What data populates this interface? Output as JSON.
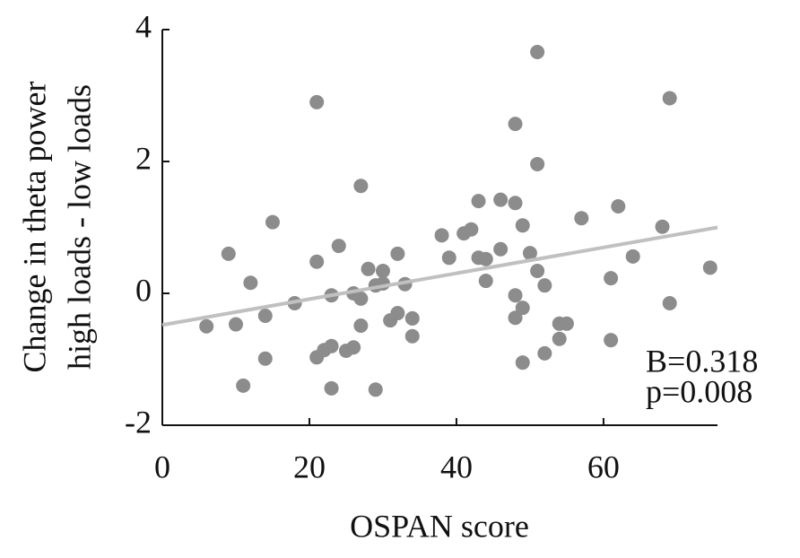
{
  "chart_data": {
    "type": "scatter",
    "x_label": "OSPAN score",
    "y_label": [
      "Change in theta power",
      "high loads - low loads"
    ],
    "annotations": [
      "B=0.318",
      "p=0.008"
    ],
    "color": "#8c8c8c",
    "x": [
      6,
      9,
      10,
      11,
      12,
      14,
      14,
      15,
      18,
      21,
      21,
      21,
      22,
      23,
      23,
      23,
      24,
      25,
      26,
      26,
      27,
      27,
      27,
      28,
      29,
      29,
      30,
      30,
      31,
      32,
      32,
      33,
      34,
      34,
      38,
      39,
      41,
      42,
      43,
      43,
      44,
      44,
      46,
      46,
      48,
      48,
      48,
      48,
      49,
      49,
      49,
      50,
      51,
      51,
      51,
      52,
      52,
      54,
      54,
      55,
      57,
      61,
      61,
      62,
      64,
      68,
      69,
      69,
      74.5
    ],
    "values": [
      -0.5,
      0.6,
      -0.47,
      -1.4,
      0.16,
      -0.34,
      -0.99,
      1.08,
      -0.15,
      2.9,
      0.48,
      -0.97,
      -0.86,
      -0.8,
      -0.03,
      -1.44,
      0.72,
      -0.87,
      -0.82,
      0,
      1.63,
      -0.49,
      -0.08,
      0.37,
      -1.46,
      0.12,
      0.34,
      0.15,
      -0.41,
      0.6,
      -0.3,
      0.14,
      -0.38,
      -0.65,
      0.88,
      0.54,
      0.91,
      0.97,
      1.4,
      0.54,
      0.52,
      0.19,
      1.42,
      0.67,
      2.57,
      1.37,
      -0.03,
      -0.37,
      1.03,
      -0.22,
      -1.05,
      0.61,
      3.66,
      1.96,
      0.34,
      0.12,
      -0.91,
      -0.69,
      -0.46,
      -0.46,
      1.14,
      0.23,
      -0.71,
      1.32,
      0.56,
      1.01,
      2.96,
      -0.15,
      0.39
    ],
    "fit": {
      "color": "#c0c0c0",
      "x": [
        0,
        75.5
      ],
      "y": [
        -0.48,
        1.0
      ]
    },
    "xlim": [
      0,
      75.5
    ],
    "ylim": [
      -2,
      4
    ],
    "xticks": [
      0,
      20,
      40,
      60
    ],
    "yticks": [
      -2,
      0,
      2,
      4
    ]
  }
}
